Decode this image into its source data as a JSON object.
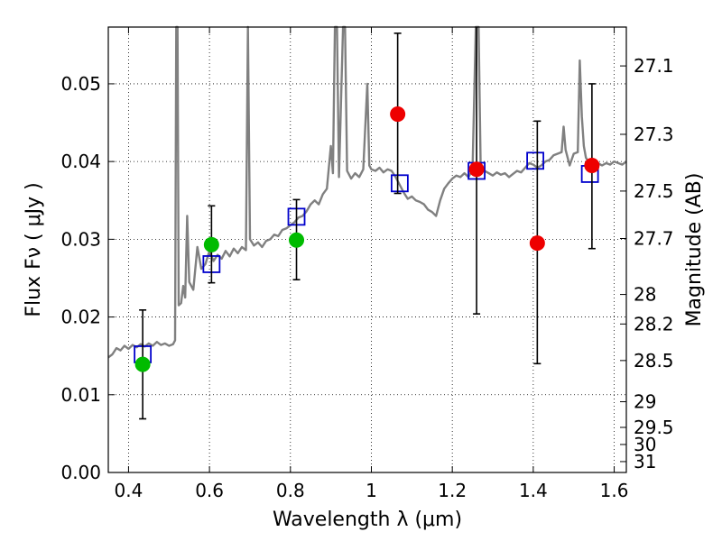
{
  "chart_data": {
    "type": "scatter",
    "xlabel": "Wavelength  λ (μm)",
    "ylabel": "Flux  Fν  ( μJy )",
    "y2label": "Magnitude (AB)",
    "xlim": [
      0.35,
      1.63
    ],
    "ylim": [
      0.0,
      0.0573
    ],
    "grid": true,
    "x_ticks": [
      0.4,
      0.6,
      0.8,
      1.0,
      1.2,
      1.4,
      1.6
    ],
    "x_tick_labels": [
      "0.4",
      "0.6",
      "0.8",
      "1",
      "1.2",
      "1.4",
      "1.6"
    ],
    "y_ticks": [
      0.0,
      0.01,
      0.02,
      0.03,
      0.04,
      0.05
    ],
    "y_tick_labels": [
      "0.00",
      "0.01",
      "0.02",
      "0.03",
      "0.04",
      "0.05"
    ],
    "mag_ticks": [
      {
        "label": "27.1",
        "flux": 0.0523
      },
      {
        "label": "27.3",
        "flux": 0.0435
      },
      {
        "label": "27.5",
        "flux": 0.0362
      },
      {
        "label": "27.7",
        "flux": 0.0301
      },
      {
        "label": "28",
        "flux": 0.0229
      },
      {
        "label": "28.2",
        "flux": 0.0191
      },
      {
        "label": "28.5",
        "flux": 0.0144
      },
      {
        "label": "29",
        "flux": 0.0091
      },
      {
        "label": "29.5",
        "flux": 0.0058
      },
      {
        "label": "30",
        "flux": 0.0036
      },
      {
        "label": "31",
        "flux": 0.0014
      }
    ],
    "series": [
      {
        "kind": "line",
        "color": "#808080",
        "points": [
          [
            0.35,
            0.0148
          ],
          [
            0.36,
            0.0152
          ],
          [
            0.37,
            0.016
          ],
          [
            0.38,
            0.0157
          ],
          [
            0.39,
            0.0163
          ],
          [
            0.4,
            0.0159
          ],
          [
            0.41,
            0.0164
          ],
          [
            0.42,
            0.0161
          ],
          [
            0.43,
            0.0165
          ],
          [
            0.44,
            0.0162
          ],
          [
            0.45,
            0.0166
          ],
          [
            0.46,
            0.0163
          ],
          [
            0.47,
            0.0168
          ],
          [
            0.48,
            0.0164
          ],
          [
            0.49,
            0.0166
          ],
          [
            0.5,
            0.0163
          ],
          [
            0.51,
            0.0165
          ],
          [
            0.515,
            0.017
          ],
          [
            0.518,
            0.0574
          ],
          [
            0.521,
            0.0574
          ],
          [
            0.524,
            0.0215
          ],
          [
            0.53,
            0.0218
          ],
          [
            0.535,
            0.024
          ],
          [
            0.54,
            0.0225
          ],
          [
            0.545,
            0.033
          ],
          [
            0.55,
            0.0245
          ],
          [
            0.56,
            0.0235
          ],
          [
            0.57,
            0.029
          ],
          [
            0.58,
            0.0262
          ],
          [
            0.59,
            0.0268
          ],
          [
            0.6,
            0.0285
          ],
          [
            0.61,
            0.0272
          ],
          [
            0.62,
            0.028
          ],
          [
            0.63,
            0.0275
          ],
          [
            0.64,
            0.0285
          ],
          [
            0.65,
            0.0278
          ],
          [
            0.66,
            0.0288
          ],
          [
            0.67,
            0.0282
          ],
          [
            0.68,
            0.029
          ],
          [
            0.69,
            0.0286
          ],
          [
            0.695,
            0.0574
          ],
          [
            0.7,
            0.03
          ],
          [
            0.71,
            0.0292
          ],
          [
            0.72,
            0.0296
          ],
          [
            0.73,
            0.029
          ],
          [
            0.74,
            0.0298
          ],
          [
            0.75,
            0.03
          ],
          [
            0.76,
            0.0306
          ],
          [
            0.77,
            0.0304
          ],
          [
            0.78,
            0.0312
          ],
          [
            0.79,
            0.0314
          ],
          [
            0.8,
            0.0318
          ],
          [
            0.81,
            0.0322
          ],
          [
            0.82,
            0.0328
          ],
          [
            0.83,
            0.033
          ],
          [
            0.84,
            0.0336
          ],
          [
            0.85,
            0.0345
          ],
          [
            0.86,
            0.035
          ],
          [
            0.87,
            0.0345
          ],
          [
            0.88,
            0.0358
          ],
          [
            0.89,
            0.0365
          ],
          [
            0.9,
            0.042
          ],
          [
            0.905,
            0.0385
          ],
          [
            0.91,
            0.0574
          ],
          [
            0.915,
            0.0574
          ],
          [
            0.92,
            0.038
          ],
          [
            0.93,
            0.0574
          ],
          [
            0.935,
            0.0574
          ],
          [
            0.94,
            0.0388
          ],
          [
            0.95,
            0.0378
          ],
          [
            0.96,
            0.0385
          ],
          [
            0.97,
            0.038
          ],
          [
            0.98,
            0.039
          ],
          [
            0.99,
            0.05
          ],
          [
            0.995,
            0.0395
          ],
          [
            1.0,
            0.039
          ],
          [
            1.01,
            0.0388
          ],
          [
            1.02,
            0.0392
          ],
          [
            1.03,
            0.0386
          ],
          [
            1.04,
            0.039
          ],
          [
            1.05,
            0.0388
          ],
          [
            1.06,
            0.038
          ],
          [
            1.07,
            0.037
          ],
          [
            1.08,
            0.036
          ],
          [
            1.09,
            0.0352
          ],
          [
            1.1,
            0.0355
          ],
          [
            1.11,
            0.035
          ],
          [
            1.12,
            0.0348
          ],
          [
            1.13,
            0.0345
          ],
          [
            1.14,
            0.0338
          ],
          [
            1.15,
            0.0335
          ],
          [
            1.16,
            0.033
          ],
          [
            1.17,
            0.035
          ],
          [
            1.18,
            0.0365
          ],
          [
            1.19,
            0.0372
          ],
          [
            1.2,
            0.0378
          ],
          [
            1.21,
            0.0382
          ],
          [
            1.22,
            0.038
          ],
          [
            1.23,
            0.0385
          ],
          [
            1.24,
            0.038
          ],
          [
            1.25,
            0.039
          ],
          [
            1.258,
            0.0574
          ],
          [
            1.265,
            0.0574
          ],
          [
            1.27,
            0.0392
          ],
          [
            1.28,
            0.0388
          ],
          [
            1.29,
            0.0385
          ],
          [
            1.3,
            0.0382
          ],
          [
            1.31,
            0.0386
          ],
          [
            1.32,
            0.0383
          ],
          [
            1.33,
            0.0385
          ],
          [
            1.34,
            0.038
          ],
          [
            1.35,
            0.0384
          ],
          [
            1.36,
            0.0388
          ],
          [
            1.37,
            0.0386
          ],
          [
            1.38,
            0.0392
          ],
          [
            1.39,
            0.0398
          ],
          [
            1.4,
            0.0396
          ],
          [
            1.41,
            0.0392
          ],
          [
            1.42,
            0.0395
          ],
          [
            1.43,
            0.04
          ],
          [
            1.44,
            0.0402
          ],
          [
            1.45,
            0.0408
          ],
          [
            1.46,
            0.041
          ],
          [
            1.47,
            0.0412
          ],
          [
            1.475,
            0.0445
          ],
          [
            1.48,
            0.0415
          ],
          [
            1.49,
            0.0395
          ],
          [
            1.5,
            0.041
          ],
          [
            1.51,
            0.0412
          ],
          [
            1.515,
            0.053
          ],
          [
            1.52,
            0.0458
          ],
          [
            1.525,
            0.042
          ],
          [
            1.53,
            0.0405
          ],
          [
            1.54,
            0.0396
          ],
          [
            1.55,
            0.0394
          ],
          [
            1.56,
            0.0398
          ],
          [
            1.57,
            0.0395
          ],
          [
            1.58,
            0.0398
          ],
          [
            1.59,
            0.0396
          ],
          [
            1.6,
            0.04
          ],
          [
            1.61,
            0.0398
          ],
          [
            1.62,
            0.0396
          ],
          [
            1.63,
            0.04
          ]
        ]
      },
      {
        "kind": "open-square",
        "color": "#0000cc",
        "points": [
          [
            0.435,
            0.0152
          ],
          [
            0.605,
            0.0268
          ],
          [
            0.815,
            0.0329
          ],
          [
            1.07,
            0.0372
          ],
          [
            1.26,
            0.0388
          ],
          [
            1.405,
            0.0401
          ],
          [
            1.54,
            0.0384
          ]
        ]
      },
      {
        "kind": "filled-circle",
        "color": "#00bb00",
        "points": [
          [
            0.435,
            0.0139
          ],
          [
            0.605,
            0.0293
          ],
          [
            0.815,
            0.0299
          ]
        ],
        "yerr": [
          [
            0.0069,
            0.0209
          ],
          [
            0.0244,
            0.0343
          ],
          [
            0.0248,
            0.0351
          ]
        ]
      },
      {
        "kind": "filled-circle",
        "color": "#ee0000",
        "points": [
          [
            1.065,
            0.0461
          ],
          [
            1.26,
            0.039
          ],
          [
            1.41,
            0.0295
          ],
          [
            1.545,
            0.0395
          ]
        ],
        "yerr": [
          [
            0.0359,
            0.0565
          ],
          [
            0.0204,
            0.0574
          ],
          [
            0.014,
            0.0452
          ],
          [
            0.0288,
            0.05
          ]
        ]
      }
    ]
  }
}
